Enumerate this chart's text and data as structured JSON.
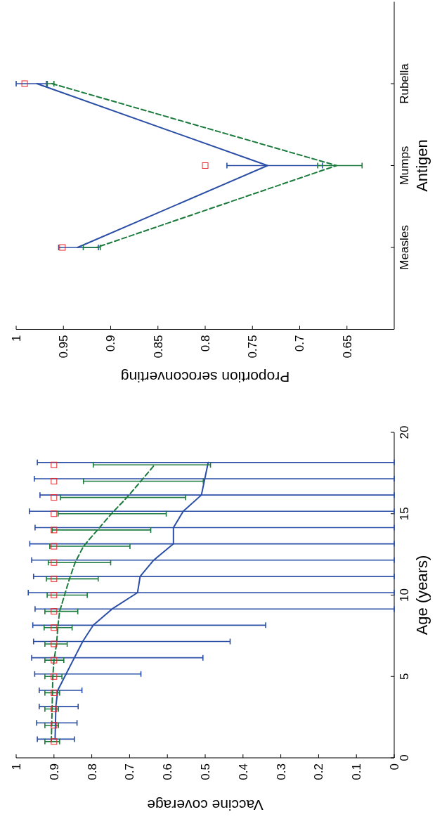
{
  "chart_data": [
    {
      "type": "line",
      "xlabel": "Vaccine coverage",
      "ylabel": "Age (years)",
      "xlim": [
        1,
        0
      ],
      "xticks": [
        0,
        0.1,
        0.2,
        0.3,
        0.4,
        0.5,
        0.6,
        0.7,
        0.8,
        0.9,
        1
      ],
      "ylim": [
        0,
        20
      ],
      "yticks": [
        0,
        5,
        10,
        15,
        20
      ],
      "series": [
        {
          "color": "#2a4ea6",
          "line_style": "solid",
          "marker": "none",
          "x": [
            0.897,
            0.896,
            0.895,
            0.89,
            0.868,
            0.846,
            0.824,
            0.796,
            0.746,
            0.679,
            0.672,
            0.636,
            0.584,
            0.584,
            0.558,
            0.51,
            0.501,
            0.492
          ],
          "values": [
            1.15,
            2.15,
            3.15,
            4.15,
            5.15,
            6.15,
            7.15,
            8.15,
            9.15,
            10.15,
            11.15,
            12.15,
            13.15,
            14.15,
            15.15,
            16.15,
            17.15,
            18.15
          ],
          "xerrors": [
            [
              0.846,
              0.944
            ],
            [
              0.839,
              0.946
            ],
            [
              0.836,
              0.939
            ],
            [
              0.826,
              0.939
            ],
            [
              0.67,
              0.951
            ],
            [
              0.506,
              0.959
            ],
            [
              0.434,
              0.954
            ],
            [
              0.34,
              0.956
            ],
            [
              0,
              0.95
            ],
            [
              0,
              0.968
            ],
            [
              0,
              0.954
            ],
            [
              0,
              0.959
            ],
            [
              0,
              0.964
            ],
            [
              0,
              0.95
            ],
            [
              0,
              0.965
            ],
            [
              0,
              0.937
            ],
            [
              0,
              0.952
            ],
            [
              0,
              0.944
            ]
          ]
        },
        {
          "color": "#1b7b3c",
          "line_style": "dashed",
          "marker": "none",
          "x": [
            0.907,
            0.906,
            0.905,
            0.904,
            0.903,
            0.9,
            0.893,
            0.89,
            0.885,
            0.872,
            0.859,
            0.844,
            0.822,
            0.785,
            0.748,
            0.707,
            0.67,
            0.634
          ],
          "values": [
            1,
            2,
            3,
            4,
            5,
            6,
            7,
            8,
            9,
            10,
            11,
            12,
            13,
            14,
            15,
            16,
            17,
            18
          ],
          "xerrors": [
            [
              0.885,
              0.924
            ],
            [
              0.888,
              0.924
            ],
            [
              0.888,
              0.924
            ],
            [
              0.885,
              0.924
            ],
            [
              0.879,
              0.924
            ],
            [
              0.874,
              0.924
            ],
            [
              0.865,
              0.924
            ],
            [
              0.852,
              0.926
            ],
            [
              0.837,
              0.924
            ],
            [
              0.812,
              0.918
            ],
            [
              0.783,
              0.92
            ],
            [
              0.75,
              0.915
            ],
            [
              0.699,
              0.911
            ],
            [
              0.644,
              0.905
            ],
            [
              0.603,
              0.889
            ],
            [
              0.552,
              0.883
            ],
            [
              0.505,
              0.822
            ],
            [
              0.486,
              0.796
            ]
          ]
        },
        {
          "type": "scatter",
          "color": "#e8262a",
          "marker": "square",
          "x": [
            0.9,
            0.9,
            0.9,
            0.9,
            0.9,
            0.9,
            0.9,
            0.9,
            0.9,
            0.9,
            0.9,
            0.9,
            0.9,
            0.9,
            0.9,
            0.9,
            0.9,
            0.9
          ],
          "values": [
            1,
            2,
            3,
            4,
            5,
            6,
            7,
            8,
            9,
            10,
            11,
            12,
            13,
            14,
            15,
            16,
            17,
            18
          ]
        }
      ]
    },
    {
      "type": "line",
      "orientation": "horizontal",
      "xlabel": "Proportion seroconverting",
      "ylabel": "Antigen",
      "categories": [
        "Rubella",
        "Mumps",
        "Measles"
      ],
      "xlim": [
        1,
        0.6
      ],
      "xticks": [
        0.65,
        0.7,
        0.75,
        0.8,
        0.85,
        0.9,
        0.95,
        1
      ],
      "series": [
        {
          "color": "#2a4ea6",
          "line_style": "solid",
          "marker": "none",
          "values": [
            0.978,
            0.734,
            0.935
          ],
          "errors": [
            [
              0.968,
              1
            ],
            [
              0.676,
              0.777
            ],
            [
              0.913,
              0.955
            ]
          ]
        },
        {
          "color": "#1b7b3c",
          "line_style": "dashed",
          "marker": "none",
          "values": [
            0.962,
            0.661,
            0.915
          ],
          "errors": [
            [
              0.96,
              0.967
            ],
            [
              0.634,
              0.681
            ],
            [
              0.911,
              0.929
            ]
          ]
        },
        {
          "type": "scatter",
          "color": "#e8262a",
          "marker": "square",
          "values": [
            0.991,
            0.8,
            0.951
          ]
        }
      ]
    }
  ]
}
